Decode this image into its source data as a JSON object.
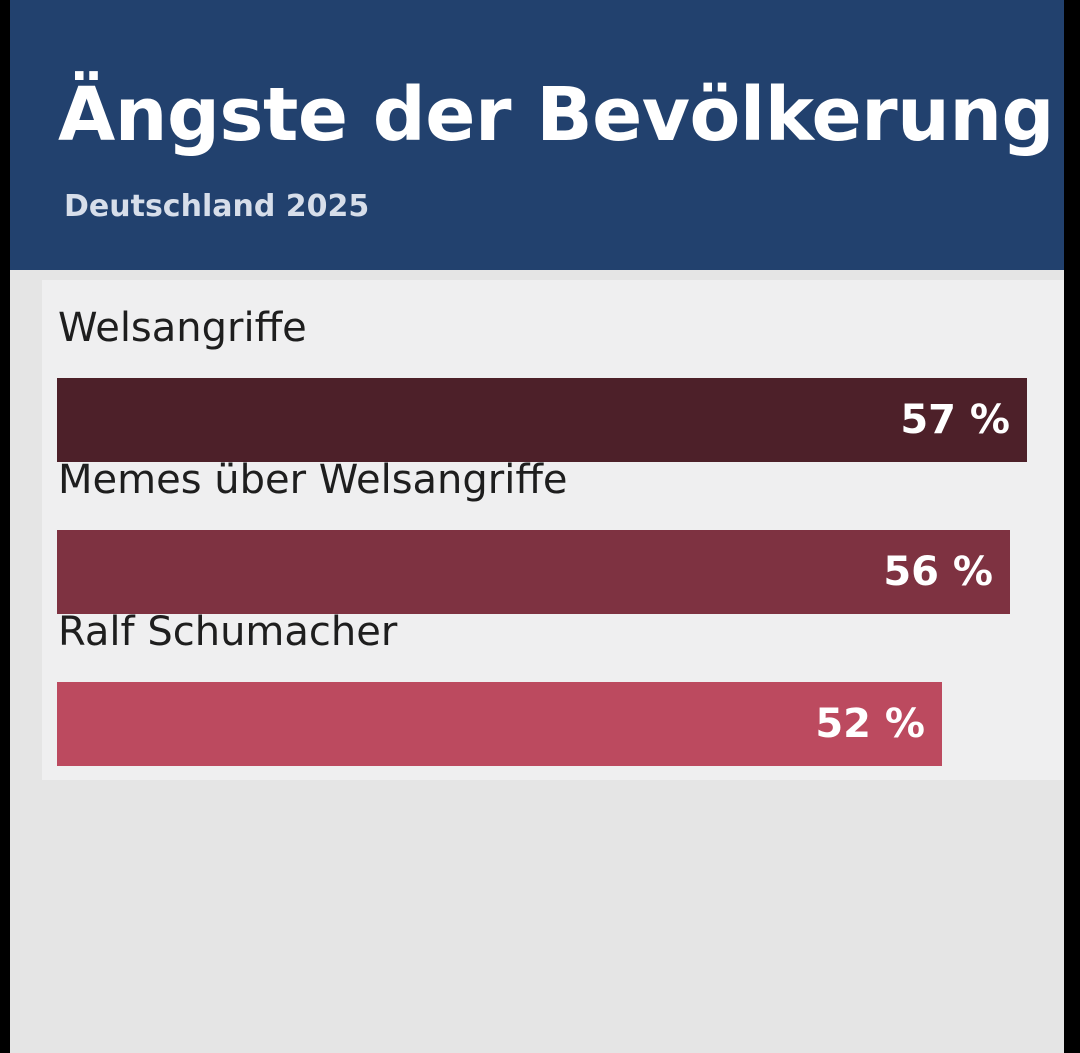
{
  "chart_data": {
    "type": "bar",
    "orientation": "horizontal",
    "title": "Ängste der Bevölkerung",
    "subtitle": "Deutschland 2025",
    "categories": [
      "Welsangriffe",
      "Memes über Welsangriffe",
      "Ralf Schumacher"
    ],
    "values": [
      57,
      56,
      52
    ],
    "value_labels": [
      "57 %",
      "56 %",
      "52 %"
    ],
    "unit": "%",
    "colors": [
      "#4d2029",
      "#7e3241",
      "#bc4a5f"
    ],
    "grid": false,
    "legend": "none"
  },
  "theme": {
    "header_bg": "#22416e",
    "title_color": "#ffffff",
    "subtitle_color": "#d7deea",
    "plot_bg": "#e5e5e5"
  }
}
